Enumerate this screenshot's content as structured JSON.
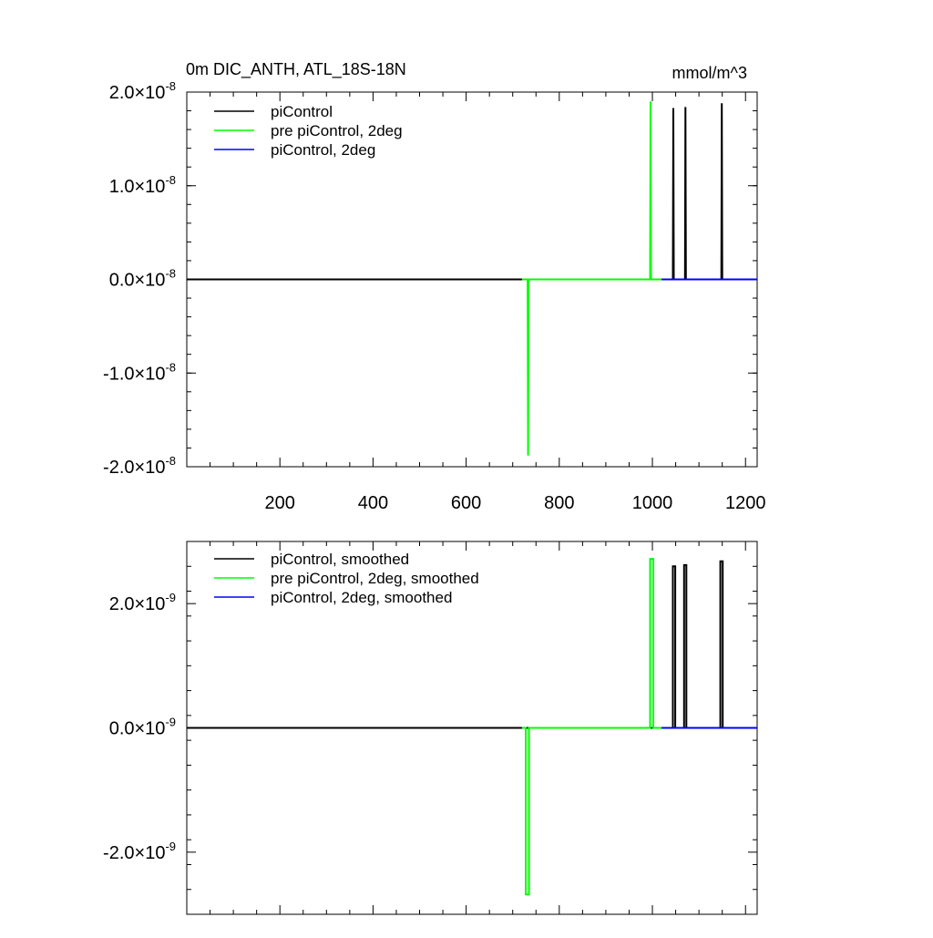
{
  "chart_data": [
    {
      "type": "line",
      "title": "0m DIC_ANTH, ATL_18S-18N",
      "units": "mmol/m^3",
      "xlim": [
        0,
        1225
      ],
      "ylim": [
        -2e-08,
        2e-08
      ],
      "xticks": [
        200,
        400,
        600,
        800,
        1000,
        1200
      ],
      "xtick_labels": [
        "200",
        "400",
        "600",
        "800",
        "1000",
        "1200"
      ],
      "yticks": [
        {
          "value": 2e-08,
          "mant": "2.0",
          "exp": "-8"
        },
        {
          "value": 1e-08,
          "mant": "1.0",
          "exp": "-8"
        },
        {
          "value": 0.0,
          "mant": "0.0",
          "exp": "-8"
        },
        {
          "value": -1e-08,
          "mant": "-1.0",
          "exp": "-8"
        },
        {
          "value": -2e-08,
          "mant": "-2.0",
          "exp": "-8"
        }
      ],
      "legend": "top-left",
      "series": [
        {
          "name": "piControl",
          "color": "#000000",
          "x": [
            0,
            1044,
            1045,
            1046,
            1070,
            1071,
            1072,
            1148,
            1149,
            1150,
            1225
          ],
          "y": [
            0,
            0,
            1.83e-08,
            0,
            0,
            1.84e-08,
            0,
            0,
            1.88e-08,
            0,
            0
          ]
        },
        {
          "name": "pre piControl, 2deg",
          "color": "#00ff00",
          "x": [
            720,
            732,
            733,
            734,
            995,
            996,
            997,
            1020
          ],
          "y": [
            0,
            0,
            -1.88e-08,
            0,
            0,
            1.9e-08,
            0,
            0
          ]
        },
        {
          "name": "piControl, 2deg",
          "color": "#0000ff",
          "x": [
            1020,
            1040,
            1225
          ],
          "y": [
            0,
            0,
            0
          ]
        }
      ]
    },
    {
      "type": "line",
      "xlim": [
        0,
        1225
      ],
      "ylim": [
        -3e-09,
        3e-09
      ],
      "xticks": [
        200,
        400,
        600,
        800,
        1000,
        1200
      ],
      "xtick_labels": [],
      "yticks": [
        {
          "value": 2e-09,
          "mant": "2.0",
          "exp": "-9"
        },
        {
          "value": 0.0,
          "mant": "0.0",
          "exp": "-9"
        },
        {
          "value": -2e-09,
          "mant": "-2.0",
          "exp": "-9"
        }
      ],
      "legend": "top-left",
      "series": [
        {
          "name": "piControl, smoothed",
          "color": "#000000",
          "x": [
            0,
            1044,
            1044,
            1049,
            1049,
            1068,
            1068,
            1073,
            1073,
            1146,
            1146,
            1151,
            1151,
            1225
          ],
          "y": [
            0,
            0,
            2.6e-09,
            2.6e-09,
            0,
            0,
            2.62e-09,
            2.62e-09,
            0,
            0,
            2.68e-09,
            2.68e-09,
            0,
            0
          ]
        },
        {
          "name": "pre piControl, 2deg, smoothed",
          "color": "#00ff00",
          "x": [
            720,
            728,
            728,
            735,
            735,
            995,
            995,
            1002,
            1002,
            1020
          ],
          "y": [
            0,
            0,
            -2.68e-09,
            -2.68e-09,
            0,
            0,
            2.72e-09,
            2.72e-09,
            0,
            0
          ]
        },
        {
          "name": "piControl, 2deg, smoothed",
          "color": "#0000ff",
          "x": [
            1020,
            1040,
            1225
          ],
          "y": [
            0,
            0,
            0
          ]
        }
      ]
    }
  ]
}
